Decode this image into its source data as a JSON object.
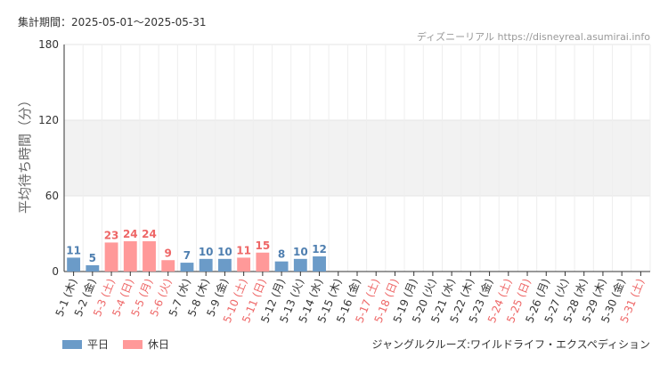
{
  "header": {
    "period": "集計期間：2025-05-01～2025-05-31",
    "credit": "ディズニーリアル https://disneyreal.asumirai.info"
  },
  "footer": {
    "attraction": "ジャングルクルーズ:ワイルドライフ・エクスペディション"
  },
  "colors": {
    "weekday": "#6b9bc8",
    "holiday": "#ff9999",
    "weekday_text": "#4f7fb0",
    "holiday_text": "#ee6666",
    "grid": "#e6e6e6",
    "band": "#f2f2f2"
  },
  "chart_data": {
    "type": "bar",
    "ylabel": "平均待ち時間（分）",
    "ylim": [
      0,
      180
    ],
    "yticks": [
      "0",
      "60",
      "120",
      "180"
    ],
    "categories": [
      "5-1 (木)",
      "5-2 (金)",
      "5-3 (土)",
      "5-4 (日)",
      "5-5 (月)",
      "5-6 (火)",
      "5-7 (水)",
      "5-8 (木)",
      "5-9 (金)",
      "5-10 (土)",
      "5-11 (日)",
      "5-12 (月)",
      "5-13 (火)",
      "5-14 (水)",
      "5-15 (木)",
      "5-16 (金)",
      "5-17 (土)",
      "5-18 (日)",
      "5-19 (月)",
      "5-20 (火)",
      "5-21 (水)",
      "5-22 (木)",
      "5-23 (金)",
      "5-24 (土)",
      "5-25 (日)",
      "5-26 (月)",
      "5-27 (火)",
      "5-28 (水)",
      "5-29 (木)",
      "5-30 (金)",
      "5-31 (土)"
    ],
    "holiday": [
      false,
      false,
      true,
      true,
      true,
      true,
      false,
      false,
      false,
      true,
      true,
      false,
      false,
      false,
      false,
      false,
      true,
      true,
      false,
      false,
      false,
      false,
      false,
      true,
      true,
      false,
      false,
      false,
      false,
      false,
      true
    ],
    "values": [
      11,
      5,
      23,
      24,
      24,
      9,
      7,
      10,
      10,
      11,
      15,
      8,
      10,
      12,
      null,
      null,
      null,
      null,
      null,
      null,
      null,
      null,
      null,
      null,
      null,
      null,
      null,
      null,
      null,
      null,
      null
    ],
    "series": [
      {
        "name": "平日"
      },
      {
        "name": "休日"
      }
    ],
    "legend_position": "bottom-left",
    "grid": true
  }
}
